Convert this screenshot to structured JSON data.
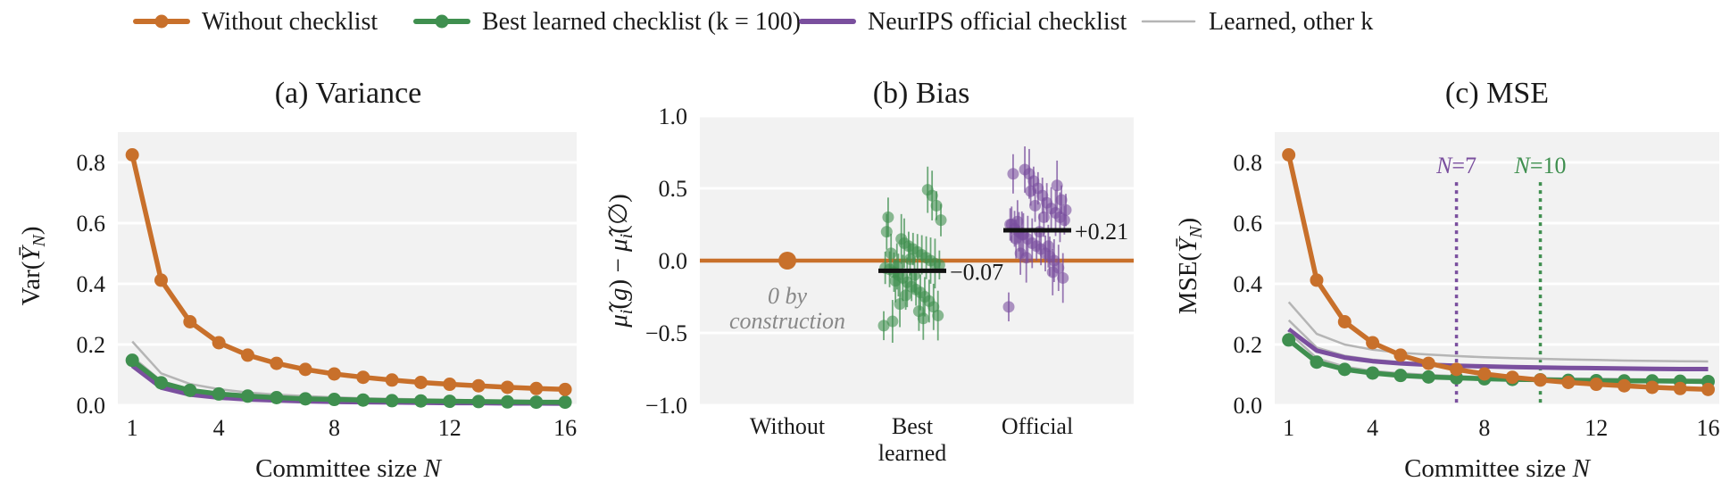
{
  "legend": [
    {
      "label": "Without checklist",
      "color": "#c8702b",
      "marker": true
    },
    {
      "label": "Best learned checklist (k = 100)",
      "color": "#3f8f4f",
      "marker": true
    },
    {
      "label": "NeurIPS official checklist",
      "color": "#7a4f9e",
      "marker": false
    },
    {
      "label": "Learned, other k",
      "color": "#b5b5b5",
      "marker": false
    }
  ],
  "colors": {
    "without": "#c8702b",
    "best": "#3f8f4f",
    "official": "#7a4f9e",
    "other": "#b5b5b5",
    "panel_bg": "#f2f2f2",
    "grid": "#ffffff"
  },
  "chart_data": [
    {
      "type": "line",
      "title": "(a) Variance",
      "xlabel": "Committee size N",
      "ylabel": "Var(Ȳ_N)",
      "xlim": [
        0.5,
        16.4
      ],
      "ylim": [
        0,
        0.9
      ],
      "xticks": [
        1,
        4,
        8,
        12,
        16
      ],
      "yticks": [
        0.0,
        0.2,
        0.4,
        0.6,
        0.8
      ],
      "grid": true,
      "x": [
        1,
        2,
        3,
        4,
        5,
        6,
        7,
        8,
        9,
        10,
        11,
        12,
        13,
        14,
        15,
        16
      ],
      "series": [
        {
          "name": "Learned, other k",
          "key": "other",
          "values": [
            0.21,
            0.105,
            0.07,
            0.053,
            0.042,
            0.035,
            0.03,
            0.026,
            0.023,
            0.021,
            0.019,
            0.018,
            0.016,
            0.015,
            0.014,
            0.013
          ]
        },
        {
          "name": "Learned, other k",
          "key": "other",
          "values": [
            0.16,
            0.08,
            0.053,
            0.04,
            0.032,
            0.027,
            0.023,
            0.02,
            0.018,
            0.016,
            0.015,
            0.013,
            0.012,
            0.011,
            0.011,
            0.01
          ]
        },
        {
          "name": "NeurIPS official checklist",
          "key": "official",
          "values": [
            0.14,
            0.07,
            0.047,
            0.035,
            0.028,
            0.023,
            0.02,
            0.018,
            0.016,
            0.014,
            0.013,
            0.012,
            0.011,
            0.01,
            0.009,
            0.009
          ]
        },
        {
          "name": "NeurIPS official checklist",
          "key": "official",
          "values": [
            0.13,
            0.058,
            0.035,
            0.025,
            0.019,
            0.016,
            0.013,
            0.011,
            0.01,
            0.009,
            0.008,
            0.007,
            0.007,
            0.006,
            0.006,
            0.005
          ]
        },
        {
          "name": "Best learned checklist (k = 100)",
          "key": "best",
          "values": [
            0.148,
            0.074,
            0.049,
            0.037,
            0.03,
            0.025,
            0.021,
            0.019,
            0.017,
            0.015,
            0.014,
            0.013,
            0.012,
            0.011,
            0.01,
            0.01
          ]
        },
        {
          "name": "Without checklist",
          "key": "without",
          "values": [
            0.825,
            0.412,
            0.275,
            0.206,
            0.165,
            0.138,
            0.118,
            0.103,
            0.092,
            0.083,
            0.075,
            0.069,
            0.064,
            0.059,
            0.055,
            0.052
          ]
        }
      ]
    },
    {
      "type": "scatter",
      "title": "(b) Bias",
      "ylabel": "μ̂_i(g) − μ̂_i(∅)",
      "ylim": [
        -1.0,
        1.0
      ],
      "yticks": [
        -1.0,
        -0.5,
        0.0,
        0.5,
        1.0
      ],
      "categories": [
        "Without",
        "Best learned",
        "Official"
      ],
      "reference_line": 0.0,
      "groups": [
        {
          "category": "Without",
          "key": "without",
          "mean": 0.0,
          "points": [
            0.0
          ]
        },
        {
          "category": "Best learned",
          "key": "best",
          "mean": -0.07,
          "mean_label": "−0.07",
          "points": [
            -0.45,
            -0.38,
            -0.32,
            -0.28,
            -0.25,
            -0.22,
            -0.2,
            -0.18,
            -0.15,
            -0.12,
            -0.1,
            -0.08,
            -0.06,
            -0.05,
            -0.03,
            -0.02,
            0.0,
            0.02,
            0.04,
            0.06,
            0.08,
            0.1,
            0.12,
            -0.3,
            -0.14,
            0.05,
            0.2,
            0.28,
            0.38,
            0.45,
            0.49,
            -0.4,
            -0.35,
            -0.1,
            0.01,
            -0.24,
            0.15,
            -0.04,
            -0.42,
            0.3
          ]
        },
        {
          "category": "Official",
          "key": "official",
          "mean": 0.21,
          "mean_label": "+0.21",
          "points": [
            -0.32,
            -0.12,
            -0.05,
            0.0,
            0.03,
            0.05,
            0.08,
            0.1,
            0.12,
            0.15,
            0.18,
            0.2,
            0.22,
            0.25,
            0.28,
            0.3,
            0.33,
            0.36,
            0.4,
            0.45,
            0.5,
            0.55,
            0.6,
            0.63,
            0.05,
            0.15,
            0.25,
            0.35,
            0.42,
            0.52,
            -0.08,
            0.1,
            0.3,
            0.2,
            0.38,
            0.48,
            0.02,
            0.18,
            0.27,
            0.6
          ]
        }
      ],
      "annotation": "0 by construction"
    },
    {
      "type": "line",
      "title": "(c) MSE",
      "xlabel": "Committee size N",
      "ylabel": "MSE(Ȳ_N)",
      "xlim": [
        0.5,
        16.4
      ],
      "ylim": [
        0,
        0.9
      ],
      "xticks": [
        1,
        4,
        8,
        12,
        16
      ],
      "yticks": [
        0.0,
        0.2,
        0.4,
        0.6,
        0.8
      ],
      "grid": true,
      "x": [
        1,
        2,
        3,
        4,
        5,
        6,
        7,
        8,
        9,
        10,
        11,
        12,
        13,
        14,
        15,
        16
      ],
      "vlines": [
        {
          "x": 7,
          "label": "N = 7",
          "key": "official"
        },
        {
          "x": 10,
          "label": "N = 10",
          "key": "best"
        }
      ],
      "series": [
        {
          "name": "Learned, other k",
          "key": "other",
          "values": [
            0.34,
            0.235,
            0.2,
            0.183,
            0.173,
            0.167,
            0.162,
            0.158,
            0.155,
            0.153,
            0.151,
            0.149,
            0.147,
            0.146,
            0.145,
            0.144
          ]
        },
        {
          "name": "Learned, other k",
          "key": "other",
          "values": [
            0.28,
            0.19,
            0.163,
            0.15,
            0.142,
            0.137,
            0.133,
            0.13,
            0.128,
            0.126,
            0.125,
            0.124,
            0.123,
            0.122,
            0.121,
            0.12
          ]
        },
        {
          "name": "NeurIPS official checklist",
          "key": "official",
          "values": [
            0.25,
            0.18,
            0.157,
            0.145,
            0.138,
            0.133,
            0.13,
            0.128,
            0.126,
            0.124,
            0.123,
            0.122,
            0.121,
            0.12,
            0.119,
            0.119
          ]
        },
        {
          "name": "Learned, other k",
          "key": "other",
          "values": [
            0.24,
            0.155,
            0.127,
            0.113,
            0.105,
            0.1,
            0.096,
            0.093,
            0.091,
            0.089,
            0.088,
            0.087,
            0.086,
            0.085,
            0.084,
            0.084
          ]
        },
        {
          "name": "Best learned checklist (k = 100)",
          "key": "best",
          "values": [
            0.215,
            0.142,
            0.118,
            0.106,
            0.098,
            0.093,
            0.09,
            0.087,
            0.085,
            0.084,
            0.082,
            0.081,
            0.08,
            0.08,
            0.079,
            0.078
          ]
        },
        {
          "name": "Without checklist",
          "key": "without",
          "values": [
            0.825,
            0.412,
            0.275,
            0.206,
            0.165,
            0.138,
            0.118,
            0.103,
            0.092,
            0.083,
            0.075,
            0.069,
            0.064,
            0.059,
            0.055,
            0.052
          ]
        }
      ]
    }
  ]
}
